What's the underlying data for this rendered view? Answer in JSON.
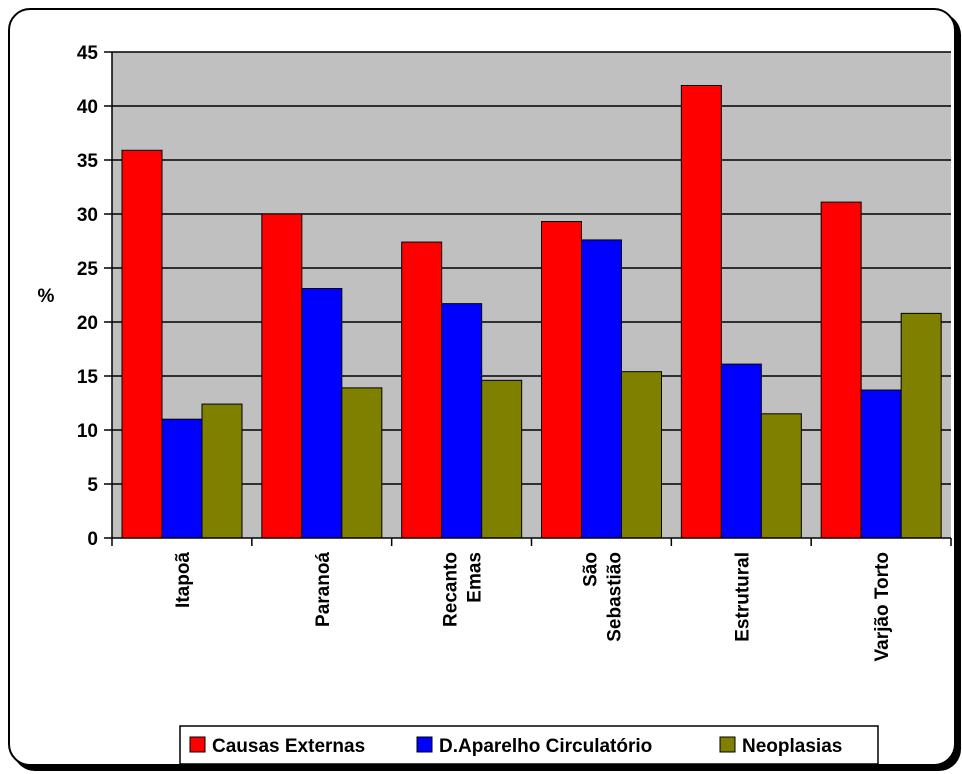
{
  "chart_data": {
    "type": "bar",
    "title": "",
    "xlabel": "",
    "ylabel": "%",
    "ylim": [
      0,
      45
    ],
    "yticks": [
      0,
      5,
      10,
      15,
      20,
      25,
      30,
      35,
      40,
      45
    ],
    "grid": true,
    "legend_position": "bottom",
    "categories": [
      [
        "Itapoã"
      ],
      [
        "Paranoá"
      ],
      [
        "Recanto",
        "Emas"
      ],
      [
        "São",
        "Sebastião"
      ],
      [
        "Estrutural"
      ],
      [
        "Varjão Torto"
      ]
    ],
    "series": [
      {
        "name": "Causas Externas",
        "color": "#ff0000",
        "values": [
          35.9,
          30.0,
          27.4,
          29.3,
          41.9,
          31.1
        ]
      },
      {
        "name": "D.Aparelho Circulatório",
        "color": "#0000ff",
        "values": [
          11.0,
          23.1,
          21.7,
          27.6,
          16.1,
          13.7
        ]
      },
      {
        "name": "Neoplasias",
        "color": "#808000",
        "values": [
          12.4,
          13.9,
          14.6,
          15.4,
          11.5,
          20.8
        ]
      }
    ],
    "plot_background": "#c0c0c0"
  }
}
